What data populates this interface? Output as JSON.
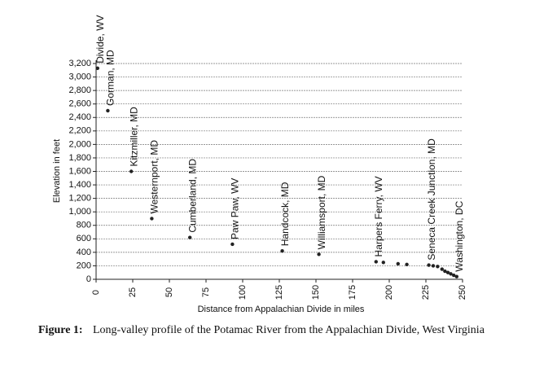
{
  "chart_data": {
    "type": "scatter",
    "x_label": "Distance from Appalachian Divide in miles",
    "y_label": "Elevation in feet",
    "figure_label": "Figure 1:",
    "caption": "Long-valley profile of the Potamac River from the Appalachian Divide, West Virginia",
    "x": [
      1,
      8,
      24,
      38,
      64,
      93,
      127,
      152,
      191,
      196,
      206,
      212,
      227,
      230,
      233,
      236,
      238,
      240,
      242,
      244,
      246
    ],
    "y": [
      3130,
      2500,
      1600,
      900,
      620,
      520,
      420,
      370,
      260,
      250,
      230,
      220,
      210,
      200,
      190,
      150,
      120,
      100,
      80,
      60,
      40
    ],
    "point_labels": [
      "Divide, WV",
      "Gorman, MD",
      "Kitzmiller, MD",
      "Westernport, MD",
      "Cumberland, MD",
      "Paw Paw, WV",
      "Handcock, MD",
      "Williamsport, MD",
      "Harpers Ferry, WV",
      null,
      null,
      null,
      "Seneca Creek Junction, MD",
      null,
      null,
      null,
      null,
      null,
      null,
      null,
      "Washington, DC"
    ],
    "color": "#222222",
    "xlim": [
      0,
      250
    ],
    "xticks": [
      0,
      25,
      50,
      75,
      100,
      125,
      150,
      175,
      200,
      225,
      250
    ],
    "ylim": [
      0,
      3200
    ],
    "yticks": [
      0,
      200,
      400,
      600,
      800,
      {
        "value": 1000,
        "label": "1,000"
      },
      {
        "value": 1200,
        "label": "1,200"
      },
      {
        "value": 1400,
        "label": "1,400"
      },
      {
        "value": 1600,
        "label": "1,600"
      },
      {
        "value": 1800,
        "label": "1,800"
      },
      {
        "value": 2000,
        "label": "2,000"
      },
      {
        "value": 2200,
        "label": "2,200"
      },
      {
        "value": 2400,
        "label": "2,400"
      },
      {
        "value": 2600,
        "label": "2,600"
      },
      {
        "value": 2800,
        "label": "2,800"
      },
      {
        "value": 3000,
        "label": "3,000"
      },
      {
        "value": 3200,
        "label": "3,200"
      }
    ],
    "grid": true
  }
}
